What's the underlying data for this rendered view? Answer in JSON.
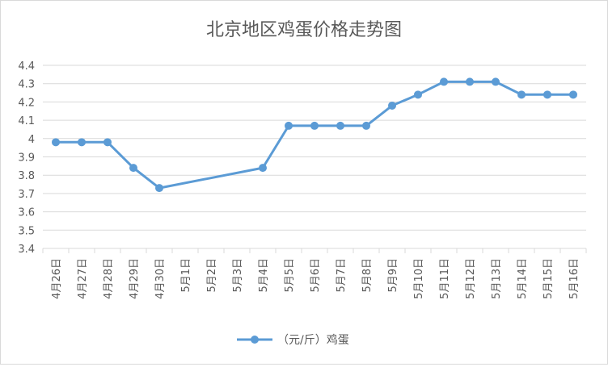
{
  "chart_data": {
    "type": "line",
    "title": "北京地区鸡蛋价格走势图",
    "categories": [
      "4月26日",
      "4月27日",
      "4月28日",
      "4月29日",
      "4月30日",
      "5月1日",
      "5月2日",
      "5月3日",
      "5月4日",
      "5月5日",
      "5月6日",
      "5月7日",
      "5月8日",
      "5月9日",
      "5月10日",
      "5月11日",
      "5月12日",
      "5月13日",
      "5月14日",
      "5月15日",
      "5月16日"
    ],
    "series": [
      {
        "name": "（元/斤）鸡蛋",
        "color": "#5b9bd5",
        "values": [
          3.98,
          3.98,
          3.98,
          3.84,
          3.73,
          null,
          null,
          null,
          3.84,
          4.07,
          4.07,
          4.07,
          4.07,
          4.18,
          4.24,
          4.31,
          4.31,
          4.31,
          4.24,
          4.24,
          4.24
        ]
      }
    ],
    "ylim": [
      3.4,
      4.4
    ],
    "yticks": [
      "3.4",
      "3.5",
      "3.6",
      "3.7",
      "3.8",
      "3.9",
      "4",
      "4.1",
      "4.2",
      "4.3",
      "4.4"
    ],
    "grid": true,
    "legend_position": "bottom",
    "gap_handling": "connect"
  }
}
